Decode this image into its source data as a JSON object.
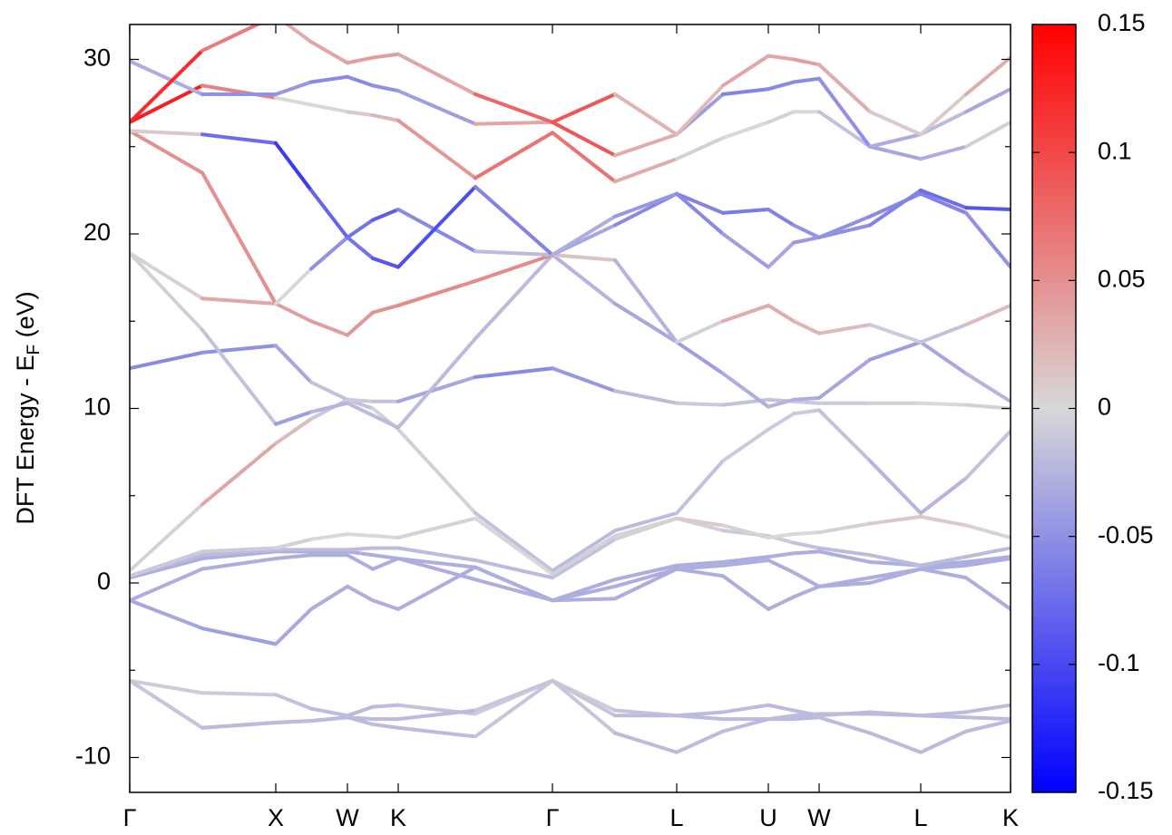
{
  "chart_data": {
    "type": "band",
    "ylabel": [
      "DFT Energy - E",
      "F",
      " (eV)"
    ],
    "x": [
      0,
      80,
      161,
      200,
      240,
      268,
      296,
      381,
      466,
      535,
      603,
      654,
      704,
      732,
      760,
      816,
      872,
      922,
      971
    ],
    "xlim": [
      0,
      971
    ],
    "xticks": [
      {
        "value": 0,
        "label": "Γ"
      },
      {
        "value": 161,
        "label": "X"
      },
      {
        "value": 240,
        "label": "W"
      },
      {
        "value": 296,
        "label": "K"
      },
      {
        "value": 466,
        "label": "Γ"
      },
      {
        "value": 603,
        "label": "L"
      },
      {
        "value": 704,
        "label": "U"
      },
      {
        "value": 760,
        "label": "W"
      },
      {
        "value": 872,
        "label": "L"
      },
      {
        "value": 971,
        "label": "K"
      }
    ],
    "ylim": [
      -12,
      32
    ],
    "yticks": [
      -10,
      0,
      10,
      20,
      30
    ],
    "yminor": [
      -5,
      5,
      15,
      25
    ],
    "zlim": [
      -0.15,
      0.15
    ],
    "zticks": [
      -0.15,
      -0.1,
      -0.05,
      0,
      0.05,
      0.1,
      0.15
    ],
    "colormap": [
      "#0000ff",
      "#d8d8d8",
      "#ff0000"
    ],
    "series": [
      {
        "values": [
          -5.6,
          -6.3,
          -6.4,
          -7.2,
          -7.6,
          -7.1,
          -7.0,
          -7.5,
          -5.6,
          -7.3,
          -7.6,
          -7.4,
          -7.0,
          -7.3,
          -7.6,
          -7.4,
          -7.6,
          -7.4,
          -7.0
        ],
        "c": [
          -0.005,
          -0.01,
          -0.01,
          -0.02,
          -0.02,
          -0.02,
          -0.02,
          -0.01,
          -0.005,
          -0.01,
          -0.02,
          -0.02,
          -0.02,
          -0.02,
          -0.02,
          -0.02,
          -0.02,
          -0.02,
          -0.02
        ]
      },
      {
        "values": [
          -5.6,
          -8.3,
          -8.0,
          -7.9,
          -7.7,
          -7.8,
          -7.8,
          -7.3,
          -5.6,
          -8.6,
          -9.7,
          -8.5,
          -7.8,
          -7.8,
          -7.7,
          -8.6,
          -9.7,
          -8.5,
          -7.9
        ],
        "c": [
          -0.005,
          -0.02,
          -0.02,
          -0.02,
          -0.02,
          -0.02,
          -0.02,
          -0.02,
          -0.005,
          -0.02,
          -0.02,
          -0.02,
          -0.02,
          -0.02,
          -0.02,
          -0.02,
          -0.02,
          -0.02,
          -0.02
        ]
      },
      {
        "values": [
          -5.6,
          -8.3,
          -8.0,
          -7.9,
          -7.7,
          -8.1,
          -8.3,
          -8.8,
          -5.6,
          -7.6,
          -7.6,
          -7.8,
          -7.8,
          -7.6,
          -7.5,
          -7.5,
          -7.6,
          -7.7,
          -7.8
        ],
        "c": [
          -0.005,
          -0.02,
          -0.02,
          -0.02,
          -0.02,
          -0.02,
          -0.02,
          -0.02,
          -0.005,
          -0.02,
          -0.02,
          -0.02,
          -0.02,
          -0.02,
          -0.02,
          -0.02,
          -0.02,
          -0.02,
          -0.02
        ]
      },
      {
        "values": [
          -1.0,
          -2.6,
          -3.5,
          -1.5,
          -0.2,
          -1.0,
          -1.5,
          0.9,
          -1.0,
          -0.2,
          0.8,
          0.4,
          -1.5,
          -0.8,
          -0.2,
          0.3,
          0.8,
          0.3,
          -1.5
        ],
        "c": [
          -0.03,
          -0.04,
          -0.04,
          -0.03,
          -0.03,
          -0.03,
          -0.03,
          -0.03,
          -0.03,
          -0.03,
          -0.03,
          -0.03,
          -0.03,
          -0.03,
          -0.03,
          -0.03,
          -0.03,
          -0.03,
          -0.03
        ]
      },
      {
        "values": [
          -1.0,
          0.8,
          1.4,
          1.6,
          1.6,
          0.8,
          1.4,
          0.9,
          -1.0,
          -0.9,
          0.8,
          1.0,
          1.3,
          0.6,
          -0.2,
          0.0,
          0.8,
          1.0,
          1.4
        ],
        "c": [
          -0.03,
          -0.03,
          -0.03,
          -0.03,
          -0.03,
          -0.03,
          -0.03,
          -0.03,
          -0.03,
          -0.03,
          -0.03,
          -0.03,
          -0.03,
          -0.03,
          -0.03,
          -0.03,
          -0.03,
          -0.03,
          -0.03
        ]
      },
      {
        "values": [
          0.3,
          1.4,
          1.8,
          1.8,
          1.8,
          1.6,
          1.4,
          0.2,
          -1.0,
          0.2,
          1.0,
          1.2,
          1.5,
          1.7,
          1.8,
          1.2,
          1.0,
          1.2,
          1.5
        ],
        "c": [
          -0.03,
          -0.03,
          -0.03,
          -0.03,
          -0.03,
          -0.03,
          -0.03,
          -0.03,
          -0.03,
          -0.03,
          -0.03,
          -0.03,
          -0.03,
          -0.03,
          -0.03,
          -0.03,
          -0.03,
          -0.03,
          -0.03
        ]
      },
      {
        "values": [
          0.4,
          1.6,
          1.9,
          1.9,
          1.9,
          2.0,
          2.0,
          1.3,
          0.3,
          2.5,
          3.7,
          3.0,
          2.7,
          2.3,
          2.0,
          1.6,
          1.0,
          1.5,
          2.0
        ],
        "c": [
          -0.02,
          -0.02,
          -0.02,
          -0.02,
          -0.02,
          -0.02,
          -0.02,
          -0.02,
          -0.02,
          -0.01,
          0.0,
          -0.01,
          -0.01,
          -0.01,
          -0.02,
          -0.02,
          -0.02,
          -0.02,
          -0.02
        ]
      },
      {
        "values": [
          0.7,
          4.5,
          8.0,
          9.4,
          10.5,
          10.0,
          8.8,
          4.0,
          0.7,
          3.0,
          4.0,
          7.0,
          8.8,
          9.7,
          9.9,
          7.0,
          4.0,
          6.0,
          8.7
        ],
        "c": [
          -0.02,
          0.03,
          0.04,
          0.0,
          -0.02,
          -0.01,
          0.0,
          -0.01,
          -0.02,
          -0.02,
          -0.02,
          -0.01,
          -0.01,
          -0.01,
          -0.01,
          -0.02,
          -0.03,
          -0.02,
          -0.01
        ]
      },
      {
        "values": [
          0.4,
          1.8,
          2.0,
          2.5,
          2.8,
          2.7,
          2.6,
          3.7,
          0.5,
          2.7,
          3.7,
          3.3,
          2.6,
          2.8,
          2.9,
          3.4,
          3.8,
          3.3,
          2.6
        ],
        "c": [
          -0.01,
          -0.01,
          -0.01,
          0.0,
          0.0,
          0.0,
          0.0,
          0.01,
          -0.01,
          0.0,
          0.01,
          0.01,
          0.0,
          0.0,
          0.0,
          0.01,
          0.01,
          0.01,
          0.0
        ]
      },
      {
        "values": [
          12.3,
          13.2,
          13.6,
          11.5,
          10.5,
          10.4,
          10.4,
          11.8,
          12.3,
          11.0,
          10.3,
          10.2,
          10.5,
          10.4,
          10.3,
          10.3,
          10.3,
          10.2,
          10.0
        ],
        "c": [
          -0.06,
          -0.05,
          -0.05,
          -0.02,
          -0.01,
          -0.01,
          -0.02,
          -0.05,
          -0.06,
          -0.03,
          -0.01,
          -0.01,
          -0.02,
          -0.01,
          -0.01,
          -0.01,
          0.0,
          0.0,
          -0.01
        ]
      },
      {
        "values": [
          18.9,
          14.5,
          9.1,
          9.8,
          10.3,
          9.6,
          8.9,
          14.0,
          18.8,
          16.0,
          13.8,
          12.0,
          10.1,
          10.5,
          10.6,
          12.8,
          13.8,
          12.0,
          10.4
        ],
        "c": [
          -0.03,
          0.02,
          -0.05,
          -0.03,
          -0.02,
          -0.02,
          -0.02,
          -0.02,
          -0.02,
          -0.03,
          -0.04,
          -0.04,
          -0.02,
          -0.03,
          -0.03,
          -0.04,
          -0.04,
          -0.03,
          -0.02
        ]
      },
      {
        "values": [
          18.9,
          16.3,
          16.0,
          15.0,
          14.2,
          15.5,
          15.9,
          17.3,
          18.8,
          18.5,
          13.8,
          15.0,
          15.9,
          15.0,
          14.3,
          14.8,
          13.8,
          14.8,
          15.9
        ],
        "c": [
          -0.02,
          0.03,
          0.04,
          0.04,
          0.04,
          0.05,
          0.05,
          0.06,
          0.05,
          -0.02,
          -0.03,
          0.02,
          0.04,
          0.02,
          0.03,
          0.01,
          -0.03,
          0.0,
          0.04
        ]
      },
      {
        "values": [
          25.9,
          23.5,
          16.0,
          18.0,
          19.8,
          20.8,
          21.4,
          19.0,
          18.8,
          20.5,
          22.3,
          21.2,
          21.4,
          20.5,
          19.8,
          21.0,
          22.3,
          21.2,
          18.1
        ],
        "c": [
          0.04,
          0.06,
          0.04,
          -0.04,
          -0.06,
          -0.08,
          -0.09,
          -0.02,
          -0.02,
          -0.05,
          -0.06,
          -0.06,
          -0.07,
          -0.05,
          -0.05,
          -0.05,
          -0.06,
          -0.06,
          -0.04
        ]
      },
      {
        "values": [
          25.9,
          25.7,
          25.2,
          22.5,
          19.8,
          18.6,
          18.1,
          22.7,
          18.8,
          21.0,
          22.3,
          20.0,
          18.1,
          19.5,
          19.8,
          20.5,
          22.5,
          21.5,
          21.4
        ],
        "c": [
          0.05,
          -0.03,
          -0.12,
          -0.1,
          -0.06,
          -0.08,
          -0.1,
          -0.09,
          -0.03,
          -0.03,
          -0.06,
          -0.05,
          -0.03,
          -0.04,
          -0.05,
          -0.05,
          -0.07,
          -0.08,
          -0.1
        ]
      },
      {
        "values": [
          26.4,
          28.5,
          27.8,
          27.4,
          27.0,
          26.8,
          26.5,
          23.2,
          25.8,
          23.0,
          24.3,
          25.5,
          26.4,
          27.0,
          27.0,
          25.0,
          24.3,
          25.0,
          26.4
        ],
        "c": [
          0.14,
          0.12,
          0.0,
          0.0,
          0.0,
          0.02,
          0.03,
          0.06,
          0.08,
          0.06,
          0.0,
          -0.01,
          0.01,
          0.0,
          0.0,
          -0.03,
          -0.04,
          -0.02,
          0.01
        ]
      },
      {
        "values": [
          29.9,
          28.0,
          28.0,
          28.7,
          29.0,
          28.5,
          28.2,
          26.3,
          26.4,
          24.5,
          25.7,
          28.0,
          28.3,
          28.7,
          28.9,
          25.0,
          25.7,
          27.0,
          28.3
        ],
        "c": [
          0.0,
          -0.06,
          -0.04,
          -0.05,
          -0.06,
          -0.05,
          -0.05,
          -0.03,
          0.1,
          0.08,
          -0.02,
          -0.06,
          -0.06,
          -0.05,
          -0.06,
          -0.04,
          -0.02,
          -0.02,
          -0.05
        ]
      },
      {
        "values": [
          26.4,
          30.5,
          32.5,
          31.0,
          29.8,
          30.1,
          30.3,
          28.0,
          26.4,
          28.0,
          25.7,
          28.5,
          30.2,
          30.0,
          29.7,
          27.0,
          25.7,
          28.0,
          30.1
        ],
        "c": [
          0.14,
          0.1,
          0.03,
          0.03,
          0.04,
          0.04,
          0.04,
          0.03,
          0.13,
          0.05,
          0.0,
          0.04,
          0.03,
          0.04,
          0.04,
          0.02,
          0.0,
          0.02,
          0.04
        ]
      }
    ]
  }
}
